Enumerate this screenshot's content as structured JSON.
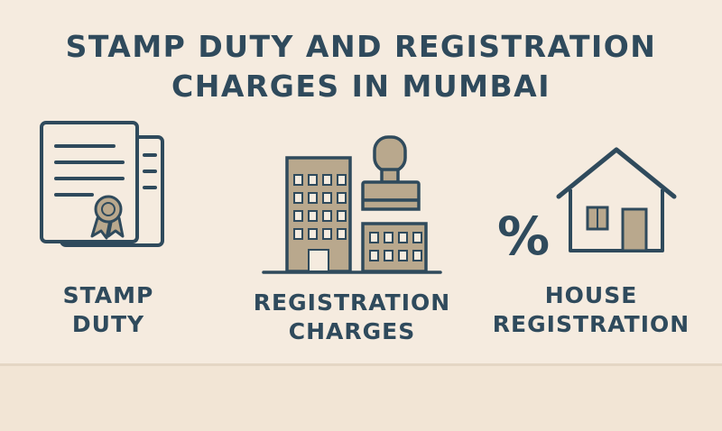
{
  "title": {
    "line1": "STAMP DUTY AND REGISTRATION",
    "line2": "CHARGES IN MUMBAI"
  },
  "items": [
    {
      "icon": "certificate-document-icon",
      "label_line1": "STAMP",
      "label_line2": "DUTY"
    },
    {
      "icon": "building-stamp-icon",
      "label_line1": "REGISTRATION",
      "label_line2": "CHARGES"
    },
    {
      "icon": "percent-house-icon",
      "label_line1": "HOUSE",
      "label_line2": "REGISTRATION"
    }
  ],
  "colors": {
    "background": "#f5ebdf",
    "text": "#2f4a5c",
    "accent": "#b9a88d"
  }
}
